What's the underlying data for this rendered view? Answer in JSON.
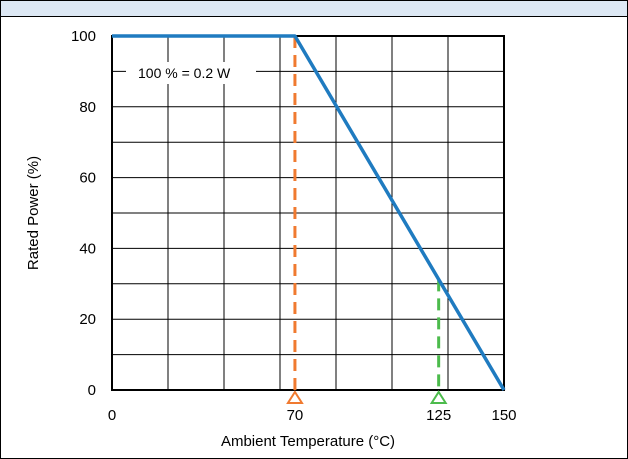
{
  "chart_data": {
    "type": "line",
    "xlabel": "Ambient Temperature (°C)",
    "ylabel": "Rated Power (%)",
    "xlim": [
      0,
      150
    ],
    "ylim": [
      0,
      100
    ],
    "xticks": [
      0,
      70,
      125,
      150
    ],
    "yticks": [
      0,
      20,
      40,
      60,
      80,
      100
    ],
    "grid": true,
    "series": [
      {
        "color": "#1f7bc0",
        "x": [
          0,
          70,
          150
        ],
        "y": [
          100,
          100,
          0
        ]
      }
    ],
    "markers": [
      {
        "x": 70,
        "color": "#f07a30"
      },
      {
        "x": 125,
        "color": "#4cbb4c"
      }
    ],
    "annotation": "100 % = 0.2 W"
  }
}
